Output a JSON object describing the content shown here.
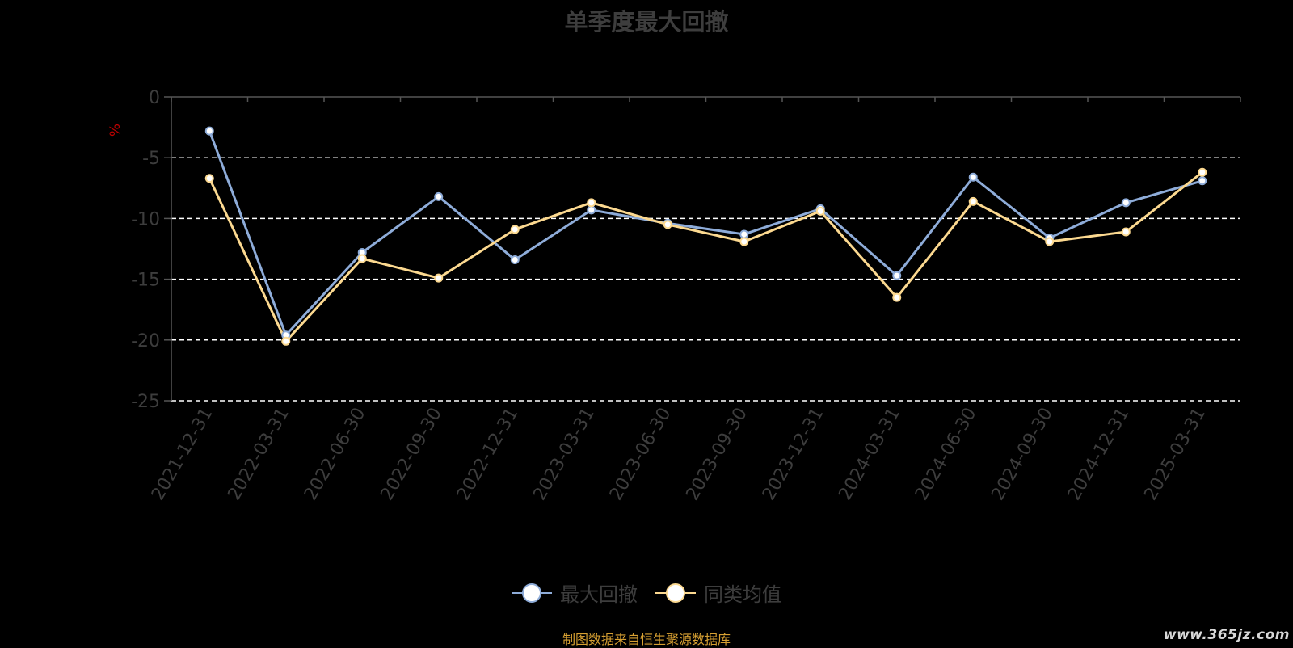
{
  "chart_data": {
    "type": "line",
    "title": "单季度最大回撤",
    "ylabel": "%",
    "categories": [
      "2021-12-31",
      "2022-03-31",
      "2022-06-30",
      "2022-09-30",
      "2022-12-31",
      "2023-03-31",
      "2023-06-30",
      "2023-09-30",
      "2023-12-31",
      "2024-03-31",
      "2024-06-30",
      "2024-09-30",
      "2024-12-31",
      "2025-03-31"
    ],
    "ylim": [
      -25,
      0
    ],
    "yticks": [
      0,
      -5,
      -10,
      -15,
      -20,
      -25
    ],
    "grid": "dashed horizontal",
    "legend_position": "bottom-center",
    "series": [
      {
        "name": "最大回撤",
        "color": "#8eacd9",
        "values": [
          -2.8,
          -19.6,
          -12.8,
          -8.2,
          -13.4,
          -9.3,
          -10.4,
          -11.3,
          -9.2,
          -14.7,
          -6.6,
          -11.6,
          -8.7,
          -6.9
        ]
      },
      {
        "name": "同类均值",
        "color": "#fcd990",
        "values": [
          -6.7,
          -20.1,
          -13.3,
          -14.9,
          -10.9,
          -8.7,
          -10.5,
          -11.9,
          -9.4,
          -16.5,
          -8.6,
          -11.9,
          -11.1,
          -6.2
        ]
      }
    ]
  },
  "source": "制图数据来自恒生聚源数据库",
  "watermark": "www.365jz.com",
  "colors": {
    "background": "#000000",
    "axis": "#555555",
    "grid": "#ffffff",
    "tick_text": "#3d3d3d",
    "unit_text": "#c00000",
    "source_text": "#d7a032"
  }
}
